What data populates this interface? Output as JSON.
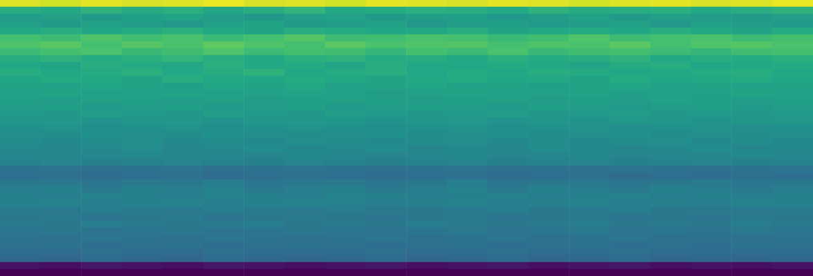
{
  "chart_data": {
    "type": "heatmap",
    "tick_labels": false,
    "zlim": [
      0,
      1
    ],
    "cells": [
      [
        0.95,
        0.93,
        0.96,
        0.94,
        0.95,
        0.97,
        0.94,
        0.95,
        0.93,
        0.96,
        0.95,
        0.94,
        0.96,
        0.95,
        0.93,
        0.95,
        0.96,
        0.94,
        0.95,
        0.97
      ],
      [
        0.62,
        0.6,
        0.64,
        0.61,
        0.63,
        0.59,
        0.62,
        0.65,
        0.6,
        0.61,
        0.63,
        0.62,
        0.6,
        0.64,
        0.61,
        0.62,
        0.63,
        0.6,
        0.62,
        0.64
      ],
      [
        0.55,
        0.57,
        0.54,
        0.56,
        0.58,
        0.55,
        0.53,
        0.56,
        0.57,
        0.54,
        0.55,
        0.56,
        0.53,
        0.55,
        0.57,
        0.54,
        0.56,
        0.55,
        0.54,
        0.56
      ],
      [
        0.56,
        0.54,
        0.57,
        0.55,
        0.53,
        0.56,
        0.58,
        0.54,
        0.55,
        0.57,
        0.53,
        0.55,
        0.56,
        0.54,
        0.55,
        0.57,
        0.53,
        0.56,
        0.55,
        0.54
      ],
      [
        0.6,
        0.62,
        0.59,
        0.61,
        0.63,
        0.6,
        0.58,
        0.62,
        0.61,
        0.59,
        0.6,
        0.62,
        0.58,
        0.6,
        0.61,
        0.59,
        0.62,
        0.6,
        0.58,
        0.61
      ],
      [
        0.7,
        0.68,
        0.72,
        0.69,
        0.71,
        0.67,
        0.7,
        0.73,
        0.68,
        0.69,
        0.71,
        0.7,
        0.67,
        0.69,
        0.72,
        0.68,
        0.7,
        0.71,
        0.68,
        0.7
      ],
      [
        0.72,
        0.74,
        0.7,
        0.73,
        0.71,
        0.75,
        0.72,
        0.7,
        0.74,
        0.71,
        0.72,
        0.73,
        0.7,
        0.72,
        0.71,
        0.74,
        0.7,
        0.72,
        0.73,
        0.71
      ],
      [
        0.68,
        0.7,
        0.71,
        0.67,
        0.69,
        0.72,
        0.68,
        0.7,
        0.69,
        0.66,
        0.7,
        0.68,
        0.71,
        0.67,
        0.69,
        0.7,
        0.68,
        0.66,
        0.69,
        0.7
      ],
      [
        0.62,
        0.64,
        0.61,
        0.63,
        0.65,
        0.62,
        0.6,
        0.63,
        0.64,
        0.61,
        0.62,
        0.6,
        0.63,
        0.61,
        0.62,
        0.64,
        0.6,
        0.62,
        0.61,
        0.63
      ],
      [
        0.6,
        0.58,
        0.62,
        0.61,
        0.59,
        0.63,
        0.6,
        0.61,
        0.58,
        0.62,
        0.6,
        0.59,
        0.61,
        0.6,
        0.58,
        0.61,
        0.62,
        0.59,
        0.6,
        0.61
      ],
      [
        0.62,
        0.6,
        0.61,
        0.63,
        0.6,
        0.62,
        0.64,
        0.6,
        0.61,
        0.62,
        0.59,
        0.61,
        0.6,
        0.62,
        0.61,
        0.59,
        0.6,
        0.61,
        0.62,
        0.6
      ],
      [
        0.59,
        0.61,
        0.6,
        0.58,
        0.62,
        0.6,
        0.59,
        0.61,
        0.6,
        0.58,
        0.6,
        0.61,
        0.59,
        0.6,
        0.58,
        0.61,
        0.59,
        0.6,
        0.61,
        0.59
      ],
      [
        0.58,
        0.57,
        0.59,
        0.58,
        0.56,
        0.59,
        0.58,
        0.6,
        0.57,
        0.58,
        0.59,
        0.57,
        0.58,
        0.56,
        0.58,
        0.59,
        0.57,
        0.58,
        0.57,
        0.58
      ],
      [
        0.57,
        0.58,
        0.56,
        0.57,
        0.58,
        0.56,
        0.57,
        0.58,
        0.57,
        0.55,
        0.57,
        0.58,
        0.56,
        0.57,
        0.58,
        0.56,
        0.57,
        0.56,
        0.58,
        0.57
      ],
      [
        0.56,
        0.55,
        0.57,
        0.56,
        0.55,
        0.57,
        0.55,
        0.56,
        0.57,
        0.56,
        0.55,
        0.56,
        0.57,
        0.55,
        0.56,
        0.55,
        0.57,
        0.56,
        0.55,
        0.56
      ],
      [
        0.55,
        0.56,
        0.54,
        0.55,
        0.56,
        0.54,
        0.55,
        0.56,
        0.54,
        0.55,
        0.56,
        0.55,
        0.54,
        0.56,
        0.55,
        0.54,
        0.55,
        0.56,
        0.54,
        0.55
      ],
      [
        0.54,
        0.53,
        0.55,
        0.54,
        0.53,
        0.55,
        0.54,
        0.53,
        0.55,
        0.54,
        0.53,
        0.54,
        0.55,
        0.53,
        0.54,
        0.55,
        0.53,
        0.54,
        0.53,
        0.54
      ],
      [
        0.52,
        0.53,
        0.51,
        0.52,
        0.53,
        0.51,
        0.52,
        0.53,
        0.52,
        0.51,
        0.52,
        0.53,
        0.51,
        0.52,
        0.51,
        0.53,
        0.52,
        0.51,
        0.52,
        0.53
      ],
      [
        0.5,
        0.51,
        0.49,
        0.5,
        0.51,
        0.49,
        0.5,
        0.51,
        0.5,
        0.49,
        0.5,
        0.51,
        0.49,
        0.5,
        0.51,
        0.49,
        0.5,
        0.51,
        0.49,
        0.5
      ],
      [
        0.49,
        0.48,
        0.5,
        0.49,
        0.48,
        0.5,
        0.49,
        0.48,
        0.49,
        0.5,
        0.48,
        0.49,
        0.5,
        0.48,
        0.49,
        0.5,
        0.48,
        0.49,
        0.48,
        0.49
      ],
      [
        0.48,
        0.47,
        0.48,
        0.49,
        0.47,
        0.48,
        0.47,
        0.49,
        0.48,
        0.47,
        0.48,
        0.49,
        0.47,
        0.48,
        0.47,
        0.48,
        0.49,
        0.47,
        0.48,
        0.47
      ],
      [
        0.47,
        0.46,
        0.47,
        0.48,
        0.46,
        0.47,
        0.48,
        0.46,
        0.47,
        0.48,
        0.46,
        0.47,
        0.46,
        0.48,
        0.47,
        0.46,
        0.47,
        0.48,
        0.46,
        0.47
      ],
      [
        0.46,
        0.45,
        0.46,
        0.47,
        0.45,
        0.46,
        0.45,
        0.47,
        0.46,
        0.45,
        0.46,
        0.47,
        0.45,
        0.46,
        0.47,
        0.45,
        0.46,
        0.45,
        0.47,
        0.46
      ],
      [
        0.44,
        0.45,
        0.43,
        0.44,
        0.45,
        0.44,
        0.43,
        0.45,
        0.44,
        0.43,
        0.44,
        0.45,
        0.43,
        0.44,
        0.45,
        0.43,
        0.44,
        0.45,
        0.43,
        0.44
      ],
      [
        0.38,
        0.39,
        0.37,
        0.38,
        0.39,
        0.37,
        0.38,
        0.39,
        0.38,
        0.37,
        0.38,
        0.39,
        0.37,
        0.38,
        0.37,
        0.39,
        0.38,
        0.37,
        0.38,
        0.39
      ],
      [
        0.36,
        0.37,
        0.35,
        0.36,
        0.37,
        0.35,
        0.36,
        0.37,
        0.36,
        0.35,
        0.36,
        0.37,
        0.35,
        0.36,
        0.37,
        0.35,
        0.36,
        0.35,
        0.37,
        0.36
      ],
      [
        0.4,
        0.41,
        0.39,
        0.41,
        0.4,
        0.42,
        0.39,
        0.4,
        0.41,
        0.39,
        0.4,
        0.42,
        0.39,
        0.4,
        0.41,
        0.39,
        0.4,
        0.41,
        0.39,
        0.4
      ],
      [
        0.42,
        0.43,
        0.41,
        0.43,
        0.42,
        0.44,
        0.41,
        0.42,
        0.43,
        0.41,
        0.42,
        0.44,
        0.41,
        0.43,
        0.42,
        0.41,
        0.43,
        0.42,
        0.41,
        0.42
      ],
      [
        0.43,
        0.42,
        0.44,
        0.43,
        0.42,
        0.44,
        0.43,
        0.42,
        0.44,
        0.43,
        0.42,
        0.43,
        0.44,
        0.42,
        0.43,
        0.44,
        0.42,
        0.43,
        0.42,
        0.43
      ],
      [
        0.43,
        0.44,
        0.42,
        0.43,
        0.44,
        0.42,
        0.43,
        0.44,
        0.43,
        0.42,
        0.43,
        0.44,
        0.42,
        0.43,
        0.44,
        0.42,
        0.43,
        0.42,
        0.44,
        0.43
      ],
      [
        0.41,
        0.4,
        0.42,
        0.41,
        0.4,
        0.42,
        0.41,
        0.4,
        0.42,
        0.41,
        0.4,
        0.41,
        0.42,
        0.4,
        0.41,
        0.42,
        0.4,
        0.41,
        0.4,
        0.41
      ],
      [
        0.4,
        0.41,
        0.39,
        0.4,
        0.41,
        0.39,
        0.4,
        0.41,
        0.4,
        0.39,
        0.4,
        0.41,
        0.39,
        0.4,
        0.41,
        0.39,
        0.4,
        0.39,
        0.41,
        0.4
      ],
      [
        0.41,
        0.4,
        0.42,
        0.41,
        0.4,
        0.41,
        0.42,
        0.4,
        0.41,
        0.4,
        0.42,
        0.41,
        0.4,
        0.41,
        0.42,
        0.4,
        0.41,
        0.4,
        0.42,
        0.41
      ],
      [
        0.39,
        0.4,
        0.38,
        0.39,
        0.4,
        0.38,
        0.39,
        0.4,
        0.39,
        0.38,
        0.39,
        0.4,
        0.38,
        0.39,
        0.4,
        0.38,
        0.39,
        0.38,
        0.4,
        0.39
      ],
      [
        0.38,
        0.37,
        0.39,
        0.38,
        0.37,
        0.39,
        0.38,
        0.37,
        0.38,
        0.39,
        0.37,
        0.38,
        0.39,
        0.37,
        0.38,
        0.39,
        0.37,
        0.38,
        0.37,
        0.38
      ],
      [
        0.37,
        0.38,
        0.36,
        0.37,
        0.38,
        0.36,
        0.37,
        0.38,
        0.37,
        0.36,
        0.37,
        0.38,
        0.36,
        0.37,
        0.38,
        0.36,
        0.37,
        0.36,
        0.38,
        0.37
      ],
      [
        0.36,
        0.35,
        0.37,
        0.36,
        0.35,
        0.37,
        0.36,
        0.35,
        0.36,
        0.37,
        0.35,
        0.36,
        0.37,
        0.35,
        0.36,
        0.37,
        0.35,
        0.36,
        0.35,
        0.36
      ],
      [
        0.34,
        0.33,
        0.35,
        0.34,
        0.33,
        0.35,
        0.34,
        0.33,
        0.34,
        0.35,
        0.33,
        0.34,
        0.35,
        0.33,
        0.34,
        0.35,
        0.33,
        0.34,
        0.33,
        0.34
      ],
      [
        0.05,
        0.04,
        0.06,
        0.05,
        0.04,
        0.06,
        0.05,
        0.04,
        0.05,
        0.06,
        0.04,
        0.05,
        0.06,
        0.04,
        0.05,
        0.06,
        0.04,
        0.05,
        0.04,
        0.05
      ],
      [
        0.0,
        0.0,
        0.0,
        0.0,
        0.0,
        0.0,
        0.0,
        0.0,
        0.0,
        0.0,
        0.0,
        0.0,
        0.0,
        0.0,
        0.0,
        0.0,
        0.0,
        0.0,
        0.0,
        0.0
      ]
    ]
  }
}
